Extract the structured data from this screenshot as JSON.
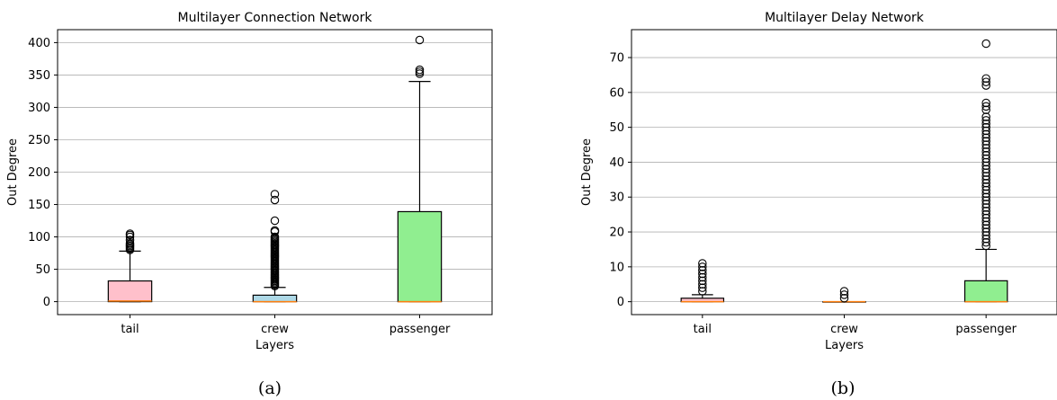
{
  "chart_data": [
    {
      "type": "box",
      "title": "Multilayer Connection Network",
      "xlabel": "Layers",
      "ylabel": "Out Degree",
      "caption": "(a)",
      "ylim": [
        -20,
        420
      ],
      "yticks": [
        0,
        50,
        100,
        150,
        200,
        250,
        300,
        350,
        400
      ],
      "grid": "horizontal",
      "categories": [
        "tail",
        "crew",
        "passenger"
      ],
      "colors": [
        "#ffc0cb",
        "#add8e6",
        "#90ee90"
      ],
      "boxes": [
        {
          "q1": 0,
          "median": 1,
          "q3": 32,
          "whisker_low": 0,
          "whisker_high": 78,
          "outliers": [
            80,
            82,
            84,
            86,
            88,
            90,
            95,
            100,
            103,
            105
          ]
        },
        {
          "q1": 0,
          "median": 0,
          "q3": 10,
          "whisker_low": 0,
          "whisker_high": 22,
          "outliers": [
            24,
            26,
            28,
            30,
            32,
            34,
            36,
            38,
            40,
            42,
            44,
            46,
            48,
            50,
            52,
            54,
            56,
            58,
            60,
            62,
            64,
            66,
            68,
            70,
            72,
            74,
            76,
            78,
            80,
            82,
            84,
            86,
            88,
            90,
            92,
            94,
            96,
            98,
            100,
            108,
            110,
            125,
            157,
            166
          ]
        },
        {
          "q1": 0,
          "median": 0,
          "q3": 139,
          "whisker_low": 0,
          "whisker_high": 340,
          "outliers": [
            352,
            355,
            358,
            404
          ]
        }
      ]
    },
    {
      "type": "box",
      "title": "Multilayer Delay Network",
      "xlabel": "Layers",
      "ylabel": "Out Degree",
      "caption": "(b)",
      "ylim": [
        -3.7,
        78
      ],
      "yticks": [
        0,
        10,
        20,
        30,
        40,
        50,
        60,
        70
      ],
      "grid": "horizontal",
      "categories": [
        "tail",
        "crew",
        "passenger"
      ],
      "colors": [
        "#ffc0cb",
        "#add8e6",
        "#90ee90"
      ],
      "boxes": [
        {
          "q1": 0,
          "median": 0,
          "q3": 1,
          "whisker_low": 0,
          "whisker_high": 2,
          "outliers": [
            3,
            4,
            5,
            6,
            7,
            8,
            9,
            10,
            11
          ]
        },
        {
          "q1": 0,
          "median": 0,
          "q3": 0,
          "whisker_low": 0,
          "whisker_high": 0,
          "outliers": [
            1,
            2,
            3
          ]
        },
        {
          "q1": 0,
          "median": 0,
          "q3": 6,
          "whisker_low": 0,
          "whisker_high": 15,
          "outliers": [
            16,
            17,
            18,
            19,
            20,
            21,
            22,
            23,
            24,
            25,
            26,
            27,
            28,
            29,
            30,
            31,
            32,
            33,
            34,
            35,
            36,
            37,
            38,
            39,
            40,
            41,
            42,
            43,
            44,
            45,
            46,
            47,
            48,
            49,
            50,
            51,
            52,
            53,
            55,
            56,
            57,
            62,
            63,
            64,
            74
          ]
        }
      ]
    }
  ]
}
